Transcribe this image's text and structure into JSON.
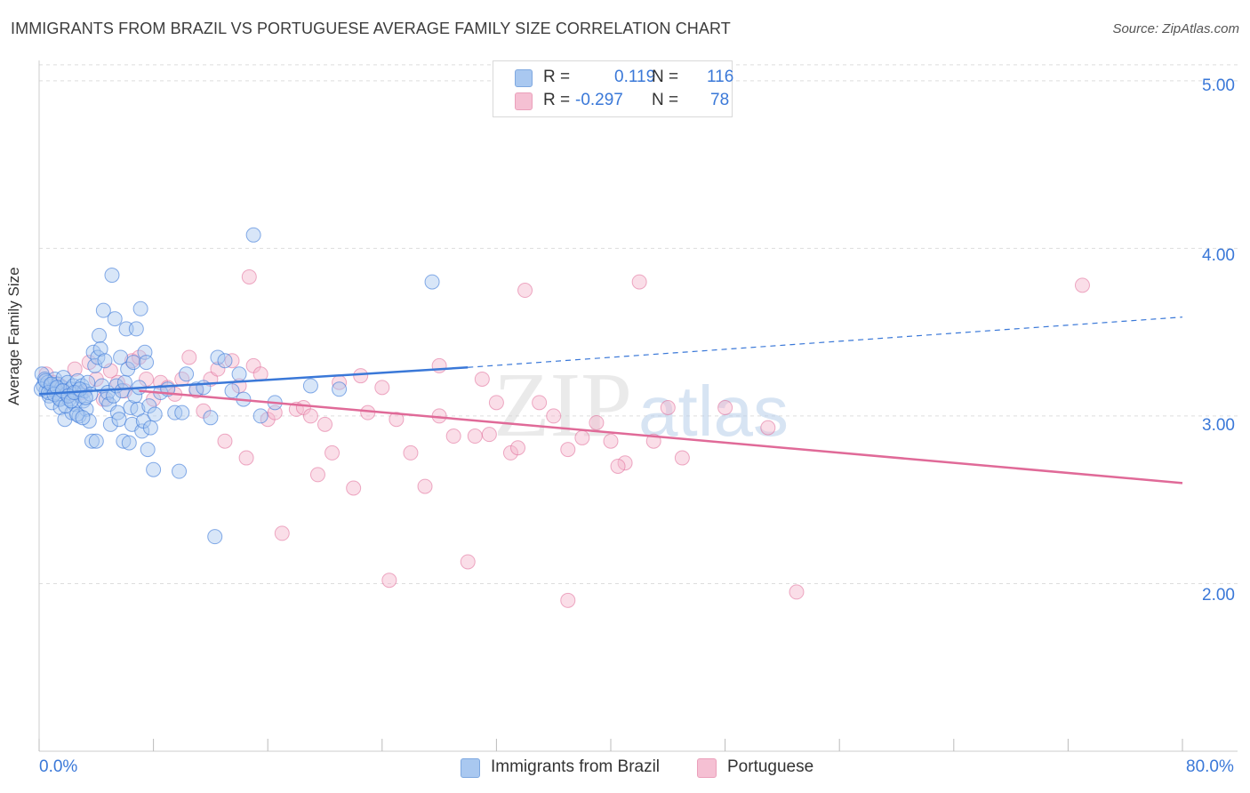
{
  "title": "IMMIGRANTS FROM BRAZIL VS PORTUGUESE AVERAGE FAMILY SIZE CORRELATION CHART",
  "source": "Source: ZipAtlas.com",
  "watermark": {
    "zip": "ZIP",
    "atlas": "atlas"
  },
  "legend": {
    "blue": {
      "r_label": "R =",
      "r_value": "0.119",
      "n_label": "N =",
      "n_value": "116"
    },
    "pink": {
      "r_label": "R =",
      "r_value": "-0.297",
      "n_label": "N =",
      "n_value": "78"
    }
  },
  "colors": {
    "blue": "#3a78d8",
    "blue_fill": "#a9c8f0",
    "pink": "#e06a98",
    "pink_fill": "#f5b6cc",
    "grid": "#dddddd",
    "tick_text": "#3a78d8"
  },
  "chart_data": {
    "type": "scatter",
    "title": "IMMIGRANTS FROM BRAZIL VS PORTUGUESE AVERAGE FAMILY SIZE CORRELATION CHART",
    "xlabel": "",
    "ylabel": "Average Family Size",
    "xlim": [
      0,
      80
    ],
    "ylim": [
      1.0,
      5.1
    ],
    "x_tick_labels": [
      "0.0%",
      "80.0%"
    ],
    "y_ticks": [
      2.0,
      3.0,
      4.0,
      5.0
    ],
    "y_tick_labels": [
      "2.00",
      "3.00",
      "4.00",
      "5.00"
    ],
    "grid": true,
    "legend_position": "bottom",
    "series": [
      {
        "name": "Immigrants from Brazil",
        "color": "#3a78d8",
        "r": 0.119,
        "n": 116,
        "trend": {
          "x0": 0.0,
          "y0": 3.13,
          "x1": 30.0,
          "y1": 3.29,
          "dashed_to_x": 80.0,
          "dashed_to_y": 3.59
        },
        "points": [
          [
            0.2,
            3.25
          ],
          [
            0.3,
            3.18
          ],
          [
            0.4,
            3.22
          ],
          [
            0.5,
            3.15
          ],
          [
            0.6,
            3.2
          ],
          [
            0.7,
            3.12
          ],
          [
            0.8,
            3.18
          ],
          [
            0.9,
            3.08
          ],
          [
            1.0,
            3.16
          ],
          [
            1.1,
            3.22
          ],
          [
            1.2,
            3.14
          ],
          [
            1.3,
            3.19
          ],
          [
            1.4,
            3.11
          ],
          [
            1.5,
            3.05
          ],
          [
            1.6,
            3.17
          ],
          [
            1.7,
            3.23
          ],
          [
            1.8,
            2.98
          ],
          [
            1.9,
            3.13
          ],
          [
            2.0,
            3.2
          ],
          [
            2.1,
            3.1
          ],
          [
            2.2,
            3.16
          ],
          [
            2.3,
            3.02
          ],
          [
            2.4,
            3.18
          ],
          [
            2.5,
            3.07
          ],
          [
            2.6,
            3.14
          ],
          [
            2.7,
            3.21
          ],
          [
            2.8,
            3.0
          ],
          [
            2.9,
            3.12
          ],
          [
            3.0,
            3.18
          ],
          [
            3.1,
            3.09
          ],
          [
            3.2,
            3.15
          ],
          [
            3.3,
            3.04
          ],
          [
            3.4,
            3.2
          ],
          [
            3.5,
            2.97
          ],
          [
            3.6,
            3.13
          ],
          [
            3.7,
            2.85
          ],
          [
            3.8,
            3.38
          ],
          [
            3.9,
            3.3
          ],
          [
            4.0,
            2.85
          ],
          [
            4.1,
            3.35
          ],
          [
            4.2,
            3.48
          ],
          [
            4.3,
            3.4
          ],
          [
            4.4,
            3.18
          ],
          [
            4.5,
            3.63
          ],
          [
            4.6,
            3.33
          ],
          [
            4.7,
            3.1
          ],
          [
            4.8,
            3.14
          ],
          [
            4.9,
            3.07
          ],
          [
            5.0,
            2.95
          ],
          [
            5.1,
            3.84
          ],
          [
            5.2,
            3.12
          ],
          [
            5.3,
            3.58
          ],
          [
            5.4,
            3.18
          ],
          [
            5.5,
            3.02
          ],
          [
            5.6,
            2.98
          ],
          [
            5.7,
            3.35
          ],
          [
            5.8,
            3.15
          ],
          [
            5.9,
            2.85
          ],
          [
            6.0,
            3.2
          ],
          [
            6.1,
            3.52
          ],
          [
            6.2,
            3.28
          ],
          [
            6.3,
            2.84
          ],
          [
            6.4,
            3.05
          ],
          [
            6.5,
            2.95
          ],
          [
            6.6,
            3.32
          ],
          [
            6.7,
            3.12
          ],
          [
            6.8,
            3.52
          ],
          [
            6.9,
            3.04
          ],
          [
            7.0,
            3.17
          ],
          [
            7.1,
            3.64
          ],
          [
            7.2,
            2.91
          ],
          [
            7.3,
            2.97
          ],
          [
            7.4,
            3.38
          ],
          [
            7.5,
            3.32
          ],
          [
            7.6,
            2.8
          ],
          [
            7.7,
            3.06
          ],
          [
            7.8,
            2.93
          ],
          [
            8.0,
            2.68
          ],
          [
            8.1,
            3.01
          ],
          [
            8.5,
            3.14
          ],
          [
            9.0,
            3.16
          ],
          [
            9.5,
            3.02
          ],
          [
            9.8,
            2.67
          ],
          [
            10.0,
            3.02
          ],
          [
            10.3,
            3.25
          ],
          [
            11.0,
            3.16
          ],
          [
            11.5,
            3.17
          ],
          [
            12.0,
            2.99
          ],
          [
            12.3,
            2.28
          ],
          [
            12.5,
            3.35
          ],
          [
            13.0,
            3.33
          ],
          [
            13.5,
            3.15
          ],
          [
            14.0,
            3.25
          ],
          [
            14.3,
            3.1
          ],
          [
            15.0,
            4.08
          ],
          [
            15.5,
            3.0
          ],
          [
            16.5,
            3.08
          ],
          [
            19.0,
            3.18
          ],
          [
            21.0,
            3.16
          ],
          [
            27.5,
            3.8
          ],
          [
            0.15,
            3.16
          ],
          [
            0.45,
            3.21
          ],
          [
            0.65,
            3.14
          ],
          [
            0.85,
            3.19
          ],
          [
            1.05,
            3.13
          ],
          [
            1.25,
            3.17
          ],
          [
            1.45,
            3.1
          ],
          [
            1.65,
            3.15
          ],
          [
            1.85,
            3.06
          ],
          [
            2.05,
            3.12
          ],
          [
            2.25,
            3.09
          ],
          [
            2.45,
            3.14
          ],
          [
            2.65,
            3.01
          ],
          [
            2.85,
            3.16
          ],
          [
            3.05,
            2.99
          ],
          [
            3.25,
            3.11
          ]
        ]
      },
      {
        "name": "Portuguese",
        "color": "#e06a98",
        "r": -0.297,
        "n": 78,
        "trend": {
          "x0": 7.0,
          "y0": 3.15,
          "x1": 80.0,
          "y1": 2.6
        },
        "points": [
          [
            0.5,
            3.25
          ],
          [
            1.0,
            3.2
          ],
          [
            1.5,
            3.18
          ],
          [
            2.0,
            3.12
          ],
          [
            2.5,
            3.28
          ],
          [
            3.0,
            3.14
          ],
          [
            3.5,
            3.32
          ],
          [
            4.0,
            3.22
          ],
          [
            4.5,
            3.1
          ],
          [
            5.0,
            3.27
          ],
          [
            5.5,
            3.2
          ],
          [
            6.0,
            3.15
          ],
          [
            6.5,
            3.33
          ],
          [
            7.0,
            3.35
          ],
          [
            7.5,
            3.22
          ],
          [
            8.0,
            3.1
          ],
          [
            8.5,
            3.2
          ],
          [
            9.0,
            3.17
          ],
          [
            9.5,
            3.13
          ],
          [
            10.0,
            3.22
          ],
          [
            10.5,
            3.35
          ],
          [
            11.0,
            3.15
          ],
          [
            11.5,
            3.03
          ],
          [
            12.0,
            3.22
          ],
          [
            12.5,
            3.28
          ],
          [
            13.0,
            2.85
          ],
          [
            13.5,
            3.33
          ],
          [
            14.0,
            3.18
          ],
          [
            14.5,
            2.75
          ],
          [
            14.7,
            3.83
          ],
          [
            15.0,
            3.3
          ],
          [
            15.5,
            3.25
          ],
          [
            16.0,
            2.98
          ],
          [
            16.5,
            3.02
          ],
          [
            17.0,
            2.3
          ],
          [
            18.0,
            3.04
          ],
          [
            18.5,
            3.05
          ],
          [
            19.0,
            3.0
          ],
          [
            19.5,
            2.65
          ],
          [
            20.0,
            2.95
          ],
          [
            20.5,
            2.78
          ],
          [
            21.0,
            3.2
          ],
          [
            22.0,
            2.57
          ],
          [
            23.0,
            3.02
          ],
          [
            24.0,
            3.17
          ],
          [
            25.0,
            2.98
          ],
          [
            26.0,
            2.78
          ],
          [
            27.0,
            2.58
          ],
          [
            28.0,
            3.3
          ],
          [
            29.0,
            2.88
          ],
          [
            30.0,
            2.13
          ],
          [
            30.5,
            2.88
          ],
          [
            31.0,
            3.22
          ],
          [
            32.0,
            3.08
          ],
          [
            33.0,
            2.78
          ],
          [
            34.0,
            3.75
          ],
          [
            35.0,
            3.08
          ],
          [
            36.0,
            3.0
          ],
          [
            37.0,
            2.8
          ],
          [
            38.0,
            2.87
          ],
          [
            39.0,
            2.96
          ],
          [
            40.0,
            2.85
          ],
          [
            41.0,
            2.72
          ],
          [
            42.0,
            3.8
          ],
          [
            43.0,
            2.85
          ],
          [
            44.0,
            3.05
          ],
          [
            45.0,
            2.75
          ],
          [
            48.0,
            3.05
          ],
          [
            51.0,
            2.93
          ],
          [
            53.0,
            1.95
          ],
          [
            24.5,
            2.02
          ],
          [
            37.0,
            1.9
          ],
          [
            73.0,
            3.78
          ],
          [
            28.0,
            3.0
          ],
          [
            33.5,
            2.81
          ],
          [
            40.5,
            2.7
          ],
          [
            31.5,
            2.89
          ],
          [
            22.5,
            3.24
          ]
        ]
      }
    ]
  },
  "bottom_legend": {
    "blue_label": "Immigrants from Brazil",
    "pink_label": "Portuguese"
  }
}
